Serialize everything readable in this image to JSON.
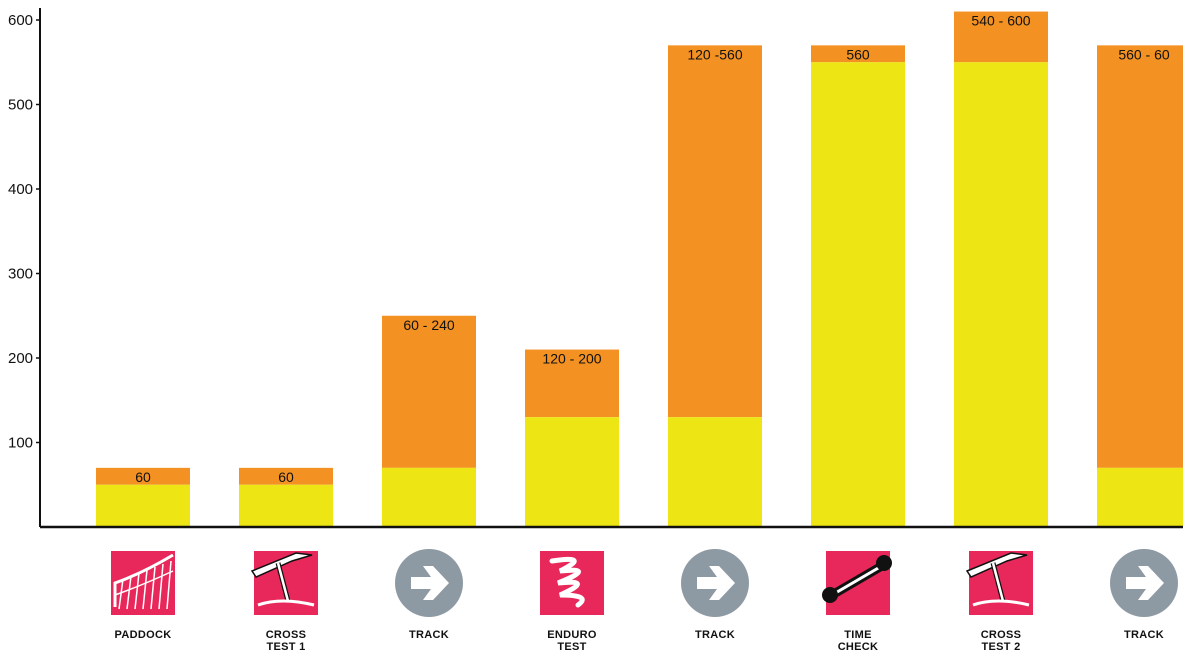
{
  "chart_data": {
    "type": "bar",
    "stacked": true,
    "ylim": [
      0,
      620
    ],
    "y_ticks": [
      "100",
      "200",
      "300",
      "400",
      "500",
      "600"
    ],
    "categories": [
      {
        "name": "PADDOCK",
        "lines": [
          "PADDOCK"
        ],
        "icon": "fence-icon",
        "icon_style": "square"
      },
      {
        "name": "CROSS TEST 1",
        "lines": [
          "CROSS",
          "TEST 1"
        ],
        "icon": "pickaxe-icon",
        "icon_style": "square"
      },
      {
        "name": "TRACK",
        "lines": [
          "TRACK"
        ],
        "icon": "arrow-right-icon",
        "icon_style": "circle"
      },
      {
        "name": "ENDURO TEST",
        "lines": [
          "ENDURO",
          "TEST"
        ],
        "icon": "squiggle-icon",
        "icon_style": "square"
      },
      {
        "name": "TRACK",
        "lines": [
          "TRACK"
        ],
        "icon": "arrow-right-icon",
        "icon_style": "circle"
      },
      {
        "name": "TIME CHECK",
        "lines": [
          "TIME",
          "CHECK"
        ],
        "icon": "wrench-icon",
        "icon_style": "square"
      },
      {
        "name": "CROSS TEST 2",
        "lines": [
          "CROSS",
          "TEST 2"
        ],
        "icon": "pickaxe-icon",
        "icon_style": "square"
      },
      {
        "name": "TRACK",
        "lines": [
          "TRACK"
        ],
        "icon": "arrow-right-icon",
        "icon_style": "circle"
      }
    ],
    "yellow_values": [
      50,
      50,
      70,
      130,
      130,
      550,
      550,
      70
    ],
    "orange_top_values": [
      70,
      70,
      250,
      210,
      570,
      570,
      610,
      570
    ],
    "bar_labels": [
      "60",
      "60",
      "60 - 240",
      "120 - 200",
      "120 -560",
      "560",
      "540 - 600",
      "560 - 60"
    ],
    "colors": {
      "yellow": "#EEE614",
      "orange": "#F39223",
      "icon_red": "#E8285A",
      "icon_gray": "#8E9AA3",
      "axis": "#111111"
    }
  }
}
